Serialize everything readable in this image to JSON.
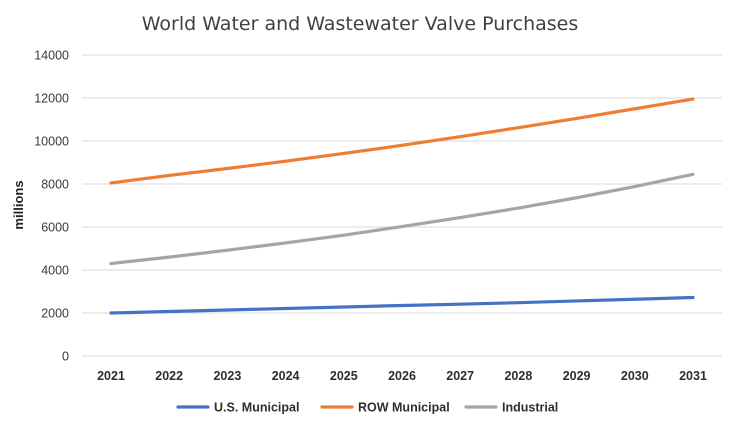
{
  "chart_data": {
    "type": "line",
    "title": "World Water and Wastewater Valve Purchases",
    "xlabel": "",
    "ylabel": "millions",
    "categories": [
      "2021",
      "2022",
      "2023",
      "2024",
      "2025",
      "2026",
      "2027",
      "2028",
      "2029",
      "2030",
      "2031"
    ],
    "ylim": [
      0,
      14000
    ],
    "yticks": [
      "0",
      "2000",
      "4000",
      "6000",
      "8000",
      "10000",
      "12000",
      "14000"
    ],
    "grid": true,
    "legend_position": "bottom",
    "series": [
      {
        "name": "U.S. Municipal",
        "color": "#4472c4",
        "values": [
          2000,
          2070,
          2140,
          2210,
          2280,
          2350,
          2410,
          2480,
          2560,
          2640,
          2720
        ]
      },
      {
        "name": "ROW Municipal",
        "color": "#ed7d31",
        "values": [
          8050,
          8400,
          8720,
          9060,
          9420,
          9800,
          10200,
          10620,
          11050,
          11500,
          11950
        ]
      },
      {
        "name": "Industrial",
        "color": "#a5a5a5",
        "values": [
          4300,
          4600,
          4920,
          5260,
          5620,
          6020,
          6440,
          6880,
          7360,
          7880,
          8450
        ]
      }
    ]
  }
}
